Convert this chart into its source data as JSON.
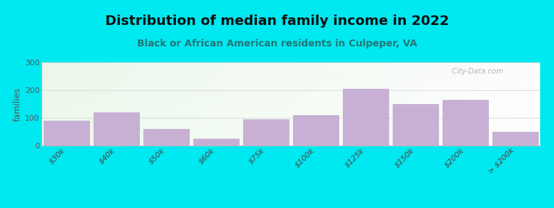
{
  "title": "Distribution of median family income in 2022",
  "subtitle": "Black or African American residents in Culpeper, VA",
  "ylabel": "families",
  "categories": [
    "$30k",
    "$40k",
    "$50k",
    "$60k",
    "$75k",
    "$100k",
    "$125k",
    "$150k",
    "$200k",
    "> $200k"
  ],
  "values": [
    90,
    120,
    60,
    25,
    95,
    110,
    205,
    150,
    165,
    50
  ],
  "bar_color": "#c8afd4",
  "background_color": "#00e8f0",
  "title_color": "#111111",
  "subtitle_color": "#227777",
  "ylabel_color": "#555555",
  "ytick_color": "#555555",
  "xtick_color": "#444444",
  "grid_color": "#dddddd",
  "ylim": [
    0,
    300
  ],
  "yticks": [
    0,
    100,
    200,
    300
  ],
  "title_fontsize": 14,
  "subtitle_fontsize": 10,
  "ylabel_fontsize": 9,
  "tick_fontsize": 8,
  "watermark_text": "  City-Data.com"
}
